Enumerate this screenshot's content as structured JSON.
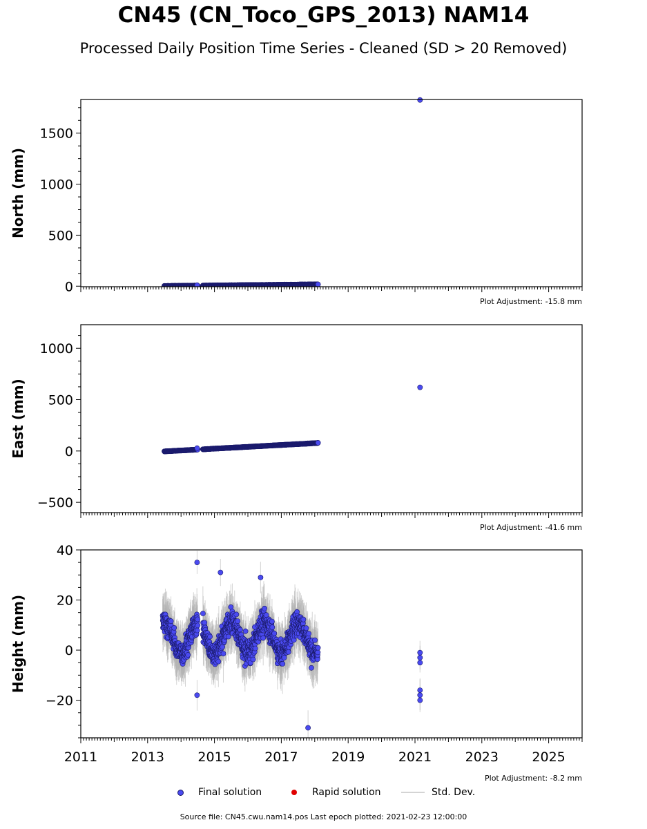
{
  "header": {
    "title": "CN45 (CN_Toco_GPS_2013) NAM14",
    "subtitle": "Processed Daily Position Time Series - Cleaned (SD > 20 Removed)"
  },
  "legend": {
    "final_label": "Final solution",
    "rapid_label": "Rapid solution",
    "std_label": "Std. Dev."
  },
  "footer": {
    "source": "Source file: CN45.cwu.nam14.pos  Last epoch plotted: 2021-02-23 12:00:00"
  },
  "colors": {
    "final": "#4a4af0",
    "final_edge": "#1a1a6a",
    "rapid": "#e00000",
    "stddev": "#b0b0b0"
  },
  "chart_data": [
    {
      "type": "scatter",
      "ylabel": "North (mm)",
      "xlim": [
        2011,
        2026
      ],
      "ylim": [
        -5,
        1830
      ],
      "yticks": [
        0,
        500,
        1000,
        1500
      ],
      "ytick_labels": [
        "0",
        "500",
        "1000",
        "1500"
      ],
      "note": "Plot Adjustment: -15.8 mm",
      "series": [
        {
          "kind": "final",
          "trend": {
            "x": [
              2013.5,
              2018.1
            ],
            "y": [
              2,
              18
            ]
          },
          "noise": 3
        },
        {
          "kind": "final",
          "points": [
            {
              "x": 2014.48,
              "y": 10
            },
            {
              "x": 2018.1,
              "y": 18
            },
            {
              "x": 2021.15,
              "y": 1825
            }
          ]
        }
      ]
    },
    {
      "type": "scatter",
      "ylabel": "East (mm)",
      "xlim": [
        2011,
        2026
      ],
      "ylim": [
        -600,
        1230
      ],
      "yticks": [
        -500,
        0,
        500,
        1000
      ],
      "ytick_labels": [
        "−500",
        "0",
        "500",
        "1000"
      ],
      "note": "Plot Adjustment: -41.6 mm",
      "series": [
        {
          "kind": "final",
          "trend": {
            "x": [
              2013.5,
              2018.1
            ],
            "y": [
              -4,
              78
            ]
          },
          "noise": 3
        },
        {
          "kind": "final",
          "points": [
            {
              "x": 2014.48,
              "y": 28
            },
            {
              "x": 2018.1,
              "y": 80
            },
            {
              "x": 2021.15,
              "y": 620
            }
          ]
        }
      ]
    },
    {
      "type": "scatter",
      "ylabel": "Height (mm)",
      "xlim": [
        2011,
        2026
      ],
      "ylim": [
        -35,
        40
      ],
      "yticks": [
        -20,
        0,
        20,
        40
      ],
      "ytick_labels": [
        "−20",
        "0",
        "20",
        "40"
      ],
      "xticks": [
        2011,
        2013,
        2015,
        2017,
        2019,
        2021,
        2023,
        2025
      ],
      "xtick_labels": [
        "2011",
        "2013",
        "2015",
        "2017",
        "2019",
        "2021",
        "2023",
        "2025"
      ],
      "note": "Plot Adjustment: -8.2 mm",
      "series": [
        {
          "kind": "final",
          "segments": [
            [
              2013.45,
              2014.5
            ],
            [
              2014.65,
              2018.1
            ]
          ],
          "seasonal_amplitude": 6,
          "noise": 6
        },
        {
          "kind": "final",
          "points": [
            {
              "x": 2014.48,
              "y": 35
            },
            {
              "x": 2015.18,
              "y": 31
            },
            {
              "x": 2016.38,
              "y": 29
            },
            {
              "x": 2017.8,
              "y": -31
            },
            {
              "x": 2014.48,
              "y": -18
            },
            {
              "x": 2021.15,
              "y": -1
            },
            {
              "x": 2021.15,
              "y": -3
            },
            {
              "x": 2021.15,
              "y": -5
            },
            {
              "x": 2021.15,
              "y": -16
            },
            {
              "x": 2021.15,
              "y": -18
            },
            {
              "x": 2021.15,
              "y": -20
            }
          ]
        }
      ]
    }
  ]
}
